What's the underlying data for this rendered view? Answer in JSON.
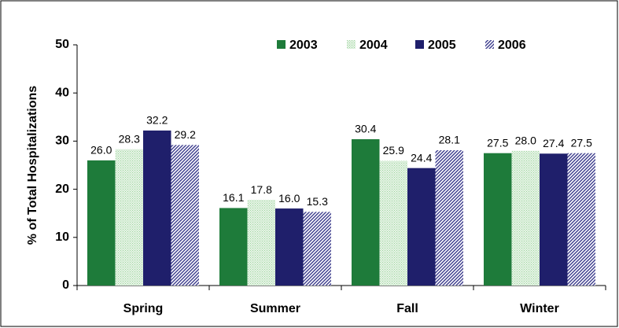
{
  "chart_data": {
    "type": "bar",
    "y_label": "% of Total Hospitalizations",
    "categories": [
      "Spring",
      "Summer",
      "Fall",
      "Winter"
    ],
    "series": [
      {
        "name": "2003",
        "color": "#1e7b3a",
        "values": [
          26.0,
          16.1,
          30.4,
          27.5
        ],
        "value_labels": [
          "26.0",
          "16.1",
          "30.4",
          "27.5"
        ]
      },
      {
        "name": "2004",
        "color": "#9fd49f",
        "values": [
          28.3,
          17.8,
          25.9,
          28.0
        ],
        "value_labels": [
          "28.3",
          "17.8",
          "25.9",
          "28.0"
        ]
      },
      {
        "name": "2005",
        "color": "#1f1f6b",
        "values": [
          32.2,
          16.0,
          24.4,
          27.4
        ],
        "value_labels": [
          "32.2",
          "16.0",
          "24.4",
          "27.4"
        ]
      },
      {
        "name": "2006",
        "color": "#3a3a8c",
        "values": [
          29.2,
          15.3,
          28.1,
          27.5
        ],
        "value_labels": [
          "29.2",
          "15.3",
          "28.1",
          "27.5"
        ]
      }
    ],
    "ylim": [
      0,
      50
    ],
    "yticks": [
      0,
      10,
      20,
      30,
      40,
      50
    ],
    "grid": false,
    "legend": "top"
  }
}
